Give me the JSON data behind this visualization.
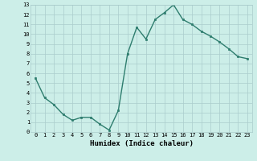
{
  "title": "",
  "xlabel": "Humidex (Indice chaleur)",
  "ylabel": "",
  "x": [
    0,
    1,
    2,
    3,
    4,
    5,
    6,
    7,
    8,
    9,
    10,
    11,
    12,
    13,
    14,
    15,
    16,
    17,
    18,
    19,
    20,
    21,
    22,
    23
  ],
  "y": [
    5.5,
    3.5,
    2.8,
    1.8,
    1.2,
    1.5,
    1.5,
    0.8,
    0.2,
    2.2,
    8.0,
    10.7,
    9.5,
    11.5,
    12.2,
    13.0,
    11.5,
    11.0,
    10.3,
    9.8,
    9.2,
    8.5,
    7.7,
    7.5
  ],
  "line_color": "#2e7d6e",
  "marker": "s",
  "marker_size": 2.0,
  "bg_color": "#cceee8",
  "grid_color": "#aacccc",
  "xlim": [
    -0.5,
    23.5
  ],
  "ylim": [
    0,
    13
  ],
  "yticks": [
    0,
    1,
    2,
    3,
    4,
    5,
    6,
    7,
    8,
    9,
    10,
    11,
    12,
    13
  ],
  "xticks": [
    0,
    1,
    2,
    3,
    4,
    5,
    6,
    7,
    8,
    9,
    10,
    11,
    12,
    13,
    14,
    15,
    16,
    17,
    18,
    19,
    20,
    21,
    22,
    23
  ],
  "tick_fontsize": 5.0,
  "label_fontsize": 6.5,
  "line_width": 1.0
}
